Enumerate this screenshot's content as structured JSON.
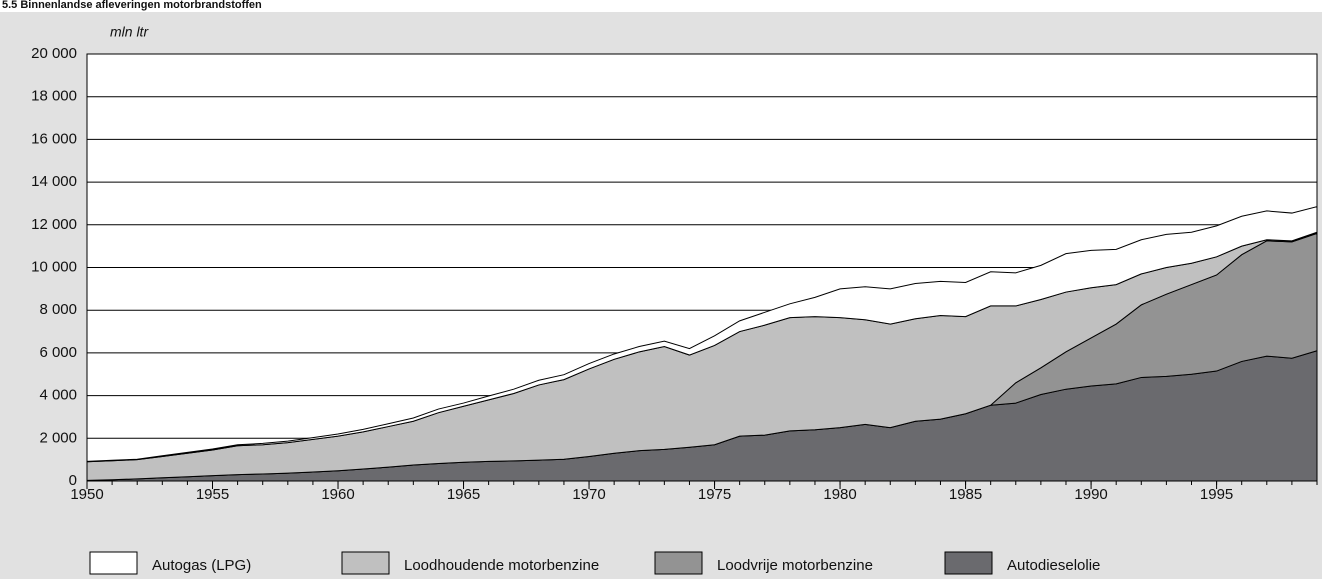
{
  "chart_data": {
    "type": "stacked-area",
    "title": "5.5 Binnenlandse afleveringen motorbrandstoffen",
    "y_label": "mln ltr",
    "x": [
      1950,
      1951,
      1952,
      1953,
      1954,
      1955,
      1956,
      1957,
      1958,
      1959,
      1960,
      1961,
      1962,
      1963,
      1964,
      1965,
      1966,
      1967,
      1968,
      1969,
      1970,
      1971,
      1972,
      1973,
      1974,
      1975,
      1976,
      1977,
      1978,
      1979,
      1980,
      1981,
      1982,
      1983,
      1984,
      1985,
      1986,
      1987,
      1988,
      1989,
      1990,
      1991,
      1992,
      1993,
      1994,
      1995,
      1996,
      1997,
      1998,
      1999
    ],
    "series": [
      {
        "name": "Autogas (LPG)",
        "color": "#ffffff",
        "values": [
          20,
          20,
          20,
          30,
          40,
          50,
          50,
          60,
          70,
          80,
          100,
          120,
          130,
          150,
          170,
          150,
          180,
          200,
          220,
          230,
          250,
          250,
          250,
          250,
          300,
          450,
          500,
          600,
          650,
          900,
          1350,
          1550,
          1650,
          1650,
          1600,
          1600,
          1600,
          1550,
          1600,
          1800,
          1750,
          1650,
          1600,
          1550,
          1450,
          1450,
          1400,
          1350,
          1300,
          1200
        ]
      },
      {
        "name": "Loodhoudende motorbenzine",
        "color": "#c0c0c0",
        "values": [
          870,
          890,
          900,
          1000,
          1100,
          1200,
          1350,
          1370,
          1430,
          1530,
          1620,
          1740,
          1900,
          2050,
          2380,
          2620,
          2880,
          3160,
          3520,
          3730,
          4100,
          4400,
          4630,
          4820,
          4320,
          4650,
          4900,
          5150,
          5300,
          5300,
          5150,
          4900,
          4850,
          4800,
          4850,
          4550,
          4650,
          3600,
          3200,
          2800,
          2350,
          1850,
          1450,
          1250,
          1000,
          850,
          400,
          50,
          50,
          50
        ]
      },
      {
        "name": "Loodvrije motorbenzine",
        "color": "#939393",
        "values": [
          0,
          0,
          0,
          0,
          0,
          0,
          0,
          0,
          0,
          0,
          0,
          0,
          0,
          0,
          0,
          0,
          0,
          0,
          0,
          0,
          0,
          0,
          0,
          0,
          0,
          0,
          0,
          0,
          0,
          0,
          0,
          0,
          0,
          0,
          0,
          0,
          0,
          950,
          1250,
          1750,
          2250,
          2800,
          3400,
          3850,
          4200,
          4500,
          5000,
          5400,
          5450,
          5500
        ]
      },
      {
        "name": "Autodieselolie",
        "color": "#6a6a6e",
        "values": [
          30,
          60,
          100,
          150,
          200,
          250,
          300,
          330,
          370,
          420,
          480,
          560,
          650,
          750,
          820,
          880,
          920,
          940,
          980,
          1020,
          1150,
          1300,
          1420,
          1480,
          1580,
          1700,
          2100,
          2150,
          2350,
          2400,
          2500,
          2650,
          2500,
          2800,
          2900,
          3150,
          3550,
          3650,
          4050,
          4300,
          4450,
          4550,
          4850,
          4900,
          5000,
          5150,
          5600,
          5850,
          5750,
          6100
        ]
      }
    ],
    "xlim": [
      1950,
      1999
    ],
    "xticks": [
      1950,
      1955,
      1960,
      1965,
      1970,
      1975,
      1980,
      1985,
      1990,
      1995
    ],
    "ylim": [
      0,
      20000
    ],
    "yticks": [
      0,
      {
        "value": 2000,
        "label": "2 000"
      },
      {
        "value": 4000,
        "label": "4 000"
      },
      {
        "value": 6000,
        "label": "6 000"
      },
      {
        "value": 8000,
        "label": "8 000"
      },
      {
        "value": 10000,
        "label": "10 000"
      },
      {
        "value": 12000,
        "label": "12 000"
      },
      {
        "value": 14000,
        "label": "14 000"
      },
      {
        "value": 16000,
        "label": "16 000"
      },
      {
        "value": 18000,
        "label": "18 000"
      },
      {
        "value": 20000,
        "label": "20 000"
      }
    ],
    "grid": true,
    "legend": "bottom"
  }
}
